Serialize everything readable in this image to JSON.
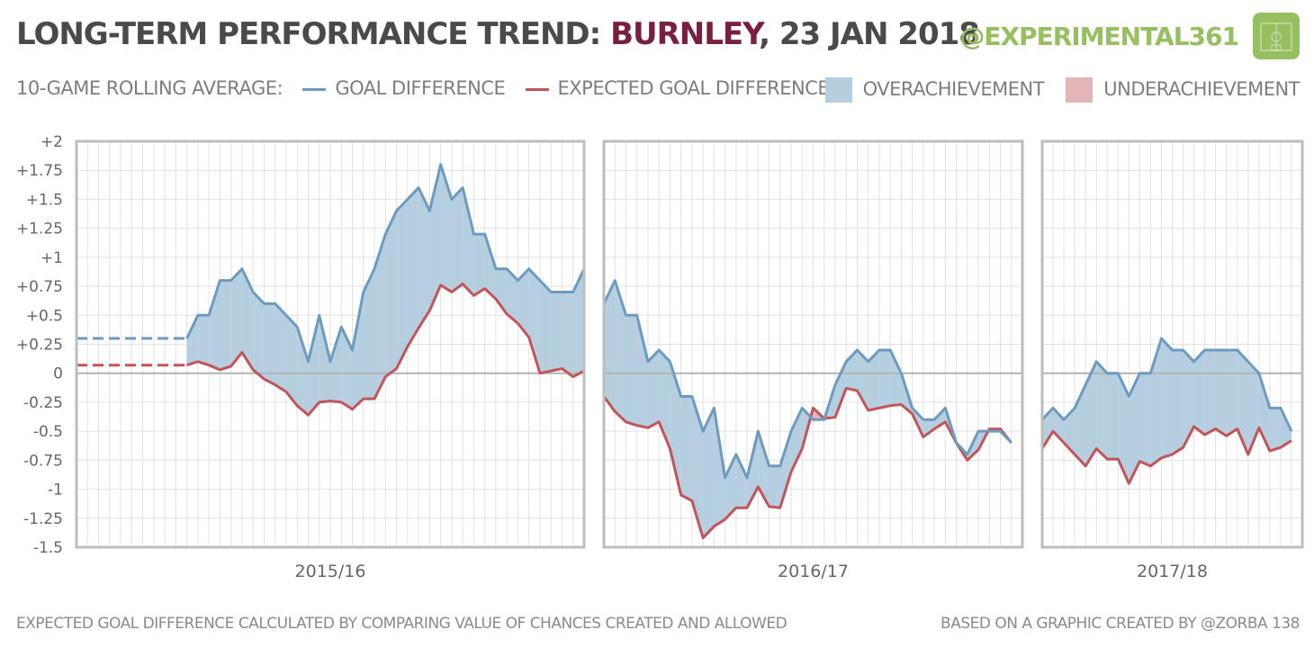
{
  "header": {
    "title_prefix": "LONG-TERM PERFORMANCE TREND:",
    "team": "BURNLEY",
    "date": ", 23 JAN 2018",
    "brand": "@EXPERIMENTAL361"
  },
  "legend": {
    "prefix": "10-GAME ROLLING AVERAGE:",
    "goal_difference": "GOAL DIFFERENCE",
    "expected_goal_difference": "EXPECTED GOAL DIFFERENCE",
    "overachievement": "OVERACHIEVEMENT",
    "underachievement": "UNDERACHIEVEMENT"
  },
  "footer": {
    "left": "EXPECTED GOAL DIFFERENCE CALCULATED BY COMPARING VALUE OF CHANCES CREATED AND ALLOWED",
    "right": "BASED ON A GRAPHIC CREATED BY @ZORBA 138"
  },
  "colors": {
    "gd_line": "#6d9bbf",
    "xgd_line": "#c2545a",
    "overachievement": "#b5cfe0",
    "underachievement": "#e3b5b8",
    "grid": "#e2e2e2",
    "frame": "#bdbdbd",
    "zero_line": "#b3b3b3",
    "brand": "#96bf5f"
  },
  "chart_data": {
    "type": "line",
    "title": "Long-term performance trend: Burnley, 23 Jan 2018",
    "ylabel": "10-game rolling average",
    "ylim": [
      -1.5,
      2
    ],
    "y_ticks": [
      2,
      1.75,
      1.5,
      1.25,
      1,
      0.75,
      0.5,
      0.25,
      0,
      -0.25,
      -0.5,
      -0.75,
      -1,
      -1.25,
      -1.5
    ],
    "y_tick_labels": [
      "+2",
      "+1.75",
      "+1.5",
      "+1.25",
      "+1",
      "+0.75",
      "+0.5",
      "+0.25",
      "0",
      "-0.25",
      "-0.5",
      "-0.75",
      "-1",
      "-1.25",
      "-1.5"
    ],
    "panels": [
      {
        "season": "2015/16",
        "games": 46,
        "start_game": 10,
        "prefix_gd": 0.3,
        "prefix_xgd": 0.07,
        "goal_difference": [
          0.3,
          0.5,
          0.5,
          0.8,
          0.8,
          0.9,
          0.7,
          0.6,
          0.6,
          0.5,
          0.4,
          0.1,
          0.5,
          0.1,
          0.4,
          0.2,
          0.7,
          0.9,
          1.2,
          1.4,
          1.5,
          1.6,
          1.4,
          1.8,
          1.5,
          1.6,
          1.2,
          1.2,
          0.9,
          0.9,
          0.8,
          0.9,
          0.8,
          0.7,
          0.7,
          0.7,
          0.9
        ],
        "expected_goal_difference": [
          0.07,
          0.1,
          0.07,
          0.03,
          0.06,
          0.18,
          0.03,
          -0.05,
          -0.1,
          -0.16,
          -0.28,
          -0.36,
          -0.25,
          -0.24,
          -0.25,
          -0.31,
          -0.22,
          -0.22,
          -0.03,
          0.04,
          0.23,
          0.39,
          0.54,
          0.76,
          0.7,
          0.77,
          0.67,
          0.73,
          0.64,
          0.51,
          0.43,
          0.31,
          0.0,
          0.02,
          0.04,
          -0.03,
          0.02
        ]
      },
      {
        "season": "2016/17",
        "games": 38,
        "start_game": 1,
        "goal_difference": [
          0.6,
          0.8,
          0.5,
          0.5,
          0.1,
          0.2,
          0.1,
          -0.2,
          -0.2,
          -0.5,
          -0.3,
          -0.9,
          -0.7,
          -0.9,
          -0.5,
          -0.8,
          -0.8,
          -0.5,
          -0.3,
          -0.4,
          -0.4,
          -0.1,
          0.1,
          0.2,
          0.1,
          0.2,
          0.2,
          0.0,
          -0.3,
          -0.4,
          -0.4,
          -0.3,
          -0.6,
          -0.7,
          -0.5,
          -0.5,
          -0.5,
          -0.6
        ],
        "expected_goal_difference": [
          -0.2,
          -0.33,
          -0.42,
          -0.45,
          -0.47,
          -0.42,
          -0.65,
          -1.05,
          -1.1,
          -1.42,
          -1.32,
          -1.26,
          -1.16,
          -1.16,
          -0.98,
          -1.15,
          -1.16,
          -0.85,
          -0.65,
          -0.3,
          -0.39,
          -0.38,
          -0.13,
          -0.15,
          -0.32,
          -0.3,
          -0.28,
          -0.27,
          -0.35,
          -0.55,
          -0.48,
          -0.42,
          -0.6,
          -0.75,
          -0.66,
          -0.48,
          -0.48,
          -0.6
        ]
      },
      {
        "season": "2017/18",
        "games": 24,
        "start_game": 1,
        "goal_difference": [
          -0.4,
          -0.3,
          -0.4,
          -0.3,
          -0.1,
          0.1,
          0.0,
          0.0,
          -0.2,
          0.0,
          0.0,
          0.3,
          0.2,
          0.2,
          0.1,
          0.2,
          0.2,
          0.2,
          0.2,
          0.1,
          0.0,
          -0.3,
          -0.3,
          -0.5
        ],
        "expected_goal_difference": [
          -0.65,
          -0.5,
          -0.6,
          -0.7,
          -0.8,
          -0.65,
          -0.74,
          -0.74,
          -0.95,
          -0.76,
          -0.8,
          -0.73,
          -0.7,
          -0.64,
          -0.46,
          -0.53,
          -0.48,
          -0.54,
          -0.48,
          -0.7,
          -0.47,
          -0.67,
          -0.64,
          -0.58
        ]
      }
    ]
  }
}
